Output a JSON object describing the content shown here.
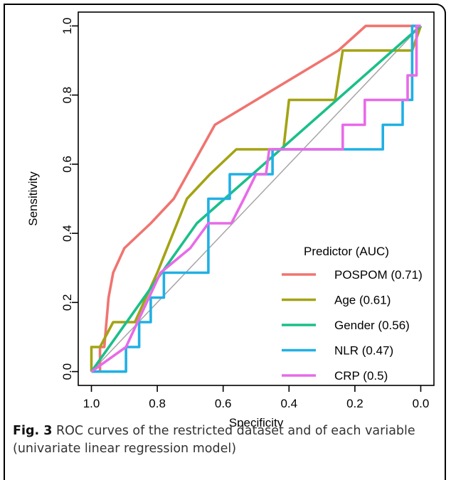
{
  "caption": {
    "label": "Fig. 3",
    "text": "ROC curves of the restricted dataset and of each variable (univariate linear regression model)"
  },
  "chart_data": {
    "type": "line",
    "title": "",
    "xlabel": "Specificity",
    "ylabel": "Sensitivity",
    "xlim": [
      1.0,
      0.0
    ],
    "ylim": [
      0.0,
      1.0
    ],
    "x_reversed": true,
    "xticks": [
      {
        "value": 1.0,
        "label": "1.0"
      },
      {
        "value": 0.8,
        "label": "0.8"
      },
      {
        "value": 0.6,
        "label": "0.6"
      },
      {
        "value": 0.4,
        "label": "0.4"
      },
      {
        "value": 0.2,
        "label": "0.2"
      },
      {
        "value": 0.0,
        "label": "0.0"
      }
    ],
    "yticks": [
      {
        "value": 0.0,
        "label": "0.0"
      },
      {
        "value": 0.2,
        "label": "0.2"
      },
      {
        "value": 0.4,
        "label": "0.4"
      },
      {
        "value": 0.6,
        "label": "0.6"
      },
      {
        "value": 0.8,
        "label": "0.8"
      },
      {
        "value": 1.0,
        "label": "1.0"
      }
    ],
    "grid": false,
    "reference_line": {
      "from": [
        1.0,
        0.0
      ],
      "to": [
        0.0,
        1.0
      ],
      "color": "#a6a6a6"
    },
    "legend": {
      "title": "Predictor (AUC)",
      "position": "bottom-right"
    },
    "series": [
      {
        "name": "POSPOM (0.71)",
        "color": "#f07470",
        "points": [
          [
            0.974,
            0.0
          ],
          [
            0.974,
            0.071
          ],
          [
            0.961,
            0.071
          ],
          [
            0.948,
            0.214
          ],
          [
            0.934,
            0.286
          ],
          [
            0.9,
            0.357
          ],
          [
            0.82,
            0.429
          ],
          [
            0.75,
            0.5
          ],
          [
            0.625,
            0.714
          ],
          [
            0.25,
            0.929
          ],
          [
            0.167,
            1.0
          ],
          [
            0.0,
            1.0
          ]
        ]
      },
      {
        "name": "Age (0.61)",
        "color": "#a3a314",
        "points": [
          [
            1.0,
            0.0
          ],
          [
            1.0,
            0.071
          ],
          [
            0.974,
            0.071
          ],
          [
            0.934,
            0.143
          ],
          [
            0.868,
            0.143
          ],
          [
            0.8,
            0.286
          ],
          [
            0.71,
            0.5
          ],
          [
            0.64,
            0.571
          ],
          [
            0.56,
            0.643
          ],
          [
            0.417,
            0.643
          ],
          [
            0.4,
            0.786
          ],
          [
            0.26,
            0.786
          ],
          [
            0.237,
            0.929
          ],
          [
            0.026,
            0.929
          ],
          [
            0.0,
            1.0
          ]
        ]
      },
      {
        "name": "Gender (0.56)",
        "color": "#1abf8a",
        "points": [
          [
            1.0,
            0.0
          ],
          [
            0.68,
            0.429
          ],
          [
            0.0,
            1.0
          ]
        ]
      },
      {
        "name": "NLR (0.47)",
        "color": "#20b0e4",
        "points": [
          [
            1.0,
            0.0
          ],
          [
            0.895,
            0.0
          ],
          [
            0.895,
            0.071
          ],
          [
            0.855,
            0.071
          ],
          [
            0.855,
            0.143
          ],
          [
            0.82,
            0.143
          ],
          [
            0.82,
            0.214
          ],
          [
            0.78,
            0.214
          ],
          [
            0.78,
            0.286
          ],
          [
            0.645,
            0.286
          ],
          [
            0.645,
            0.5
          ],
          [
            0.58,
            0.5
          ],
          [
            0.58,
            0.571
          ],
          [
            0.45,
            0.571
          ],
          [
            0.45,
            0.643
          ],
          [
            0.115,
            0.643
          ],
          [
            0.115,
            0.714
          ],
          [
            0.055,
            0.714
          ],
          [
            0.055,
            0.786
          ],
          [
            0.026,
            0.786
          ],
          [
            0.026,
            1.0
          ],
          [
            0.0,
            1.0
          ]
        ]
      },
      {
        "name": "CRP (0.5)",
        "color": "#e86ae8",
        "points": [
          [
            1.0,
            0.0
          ],
          [
            0.895,
            0.071
          ],
          [
            0.79,
            0.286
          ],
          [
            0.7,
            0.357
          ],
          [
            0.645,
            0.429
          ],
          [
            0.575,
            0.429
          ],
          [
            0.537,
            0.5
          ],
          [
            0.5,
            0.571
          ],
          [
            0.47,
            0.571
          ],
          [
            0.46,
            0.643
          ],
          [
            0.237,
            0.643
          ],
          [
            0.237,
            0.714
          ],
          [
            0.17,
            0.714
          ],
          [
            0.17,
            0.786
          ],
          [
            0.04,
            0.786
          ],
          [
            0.04,
            0.857
          ],
          [
            0.013,
            0.857
          ],
          [
            0.013,
            1.0
          ],
          [
            0.0,
            1.0
          ]
        ]
      }
    ]
  }
}
